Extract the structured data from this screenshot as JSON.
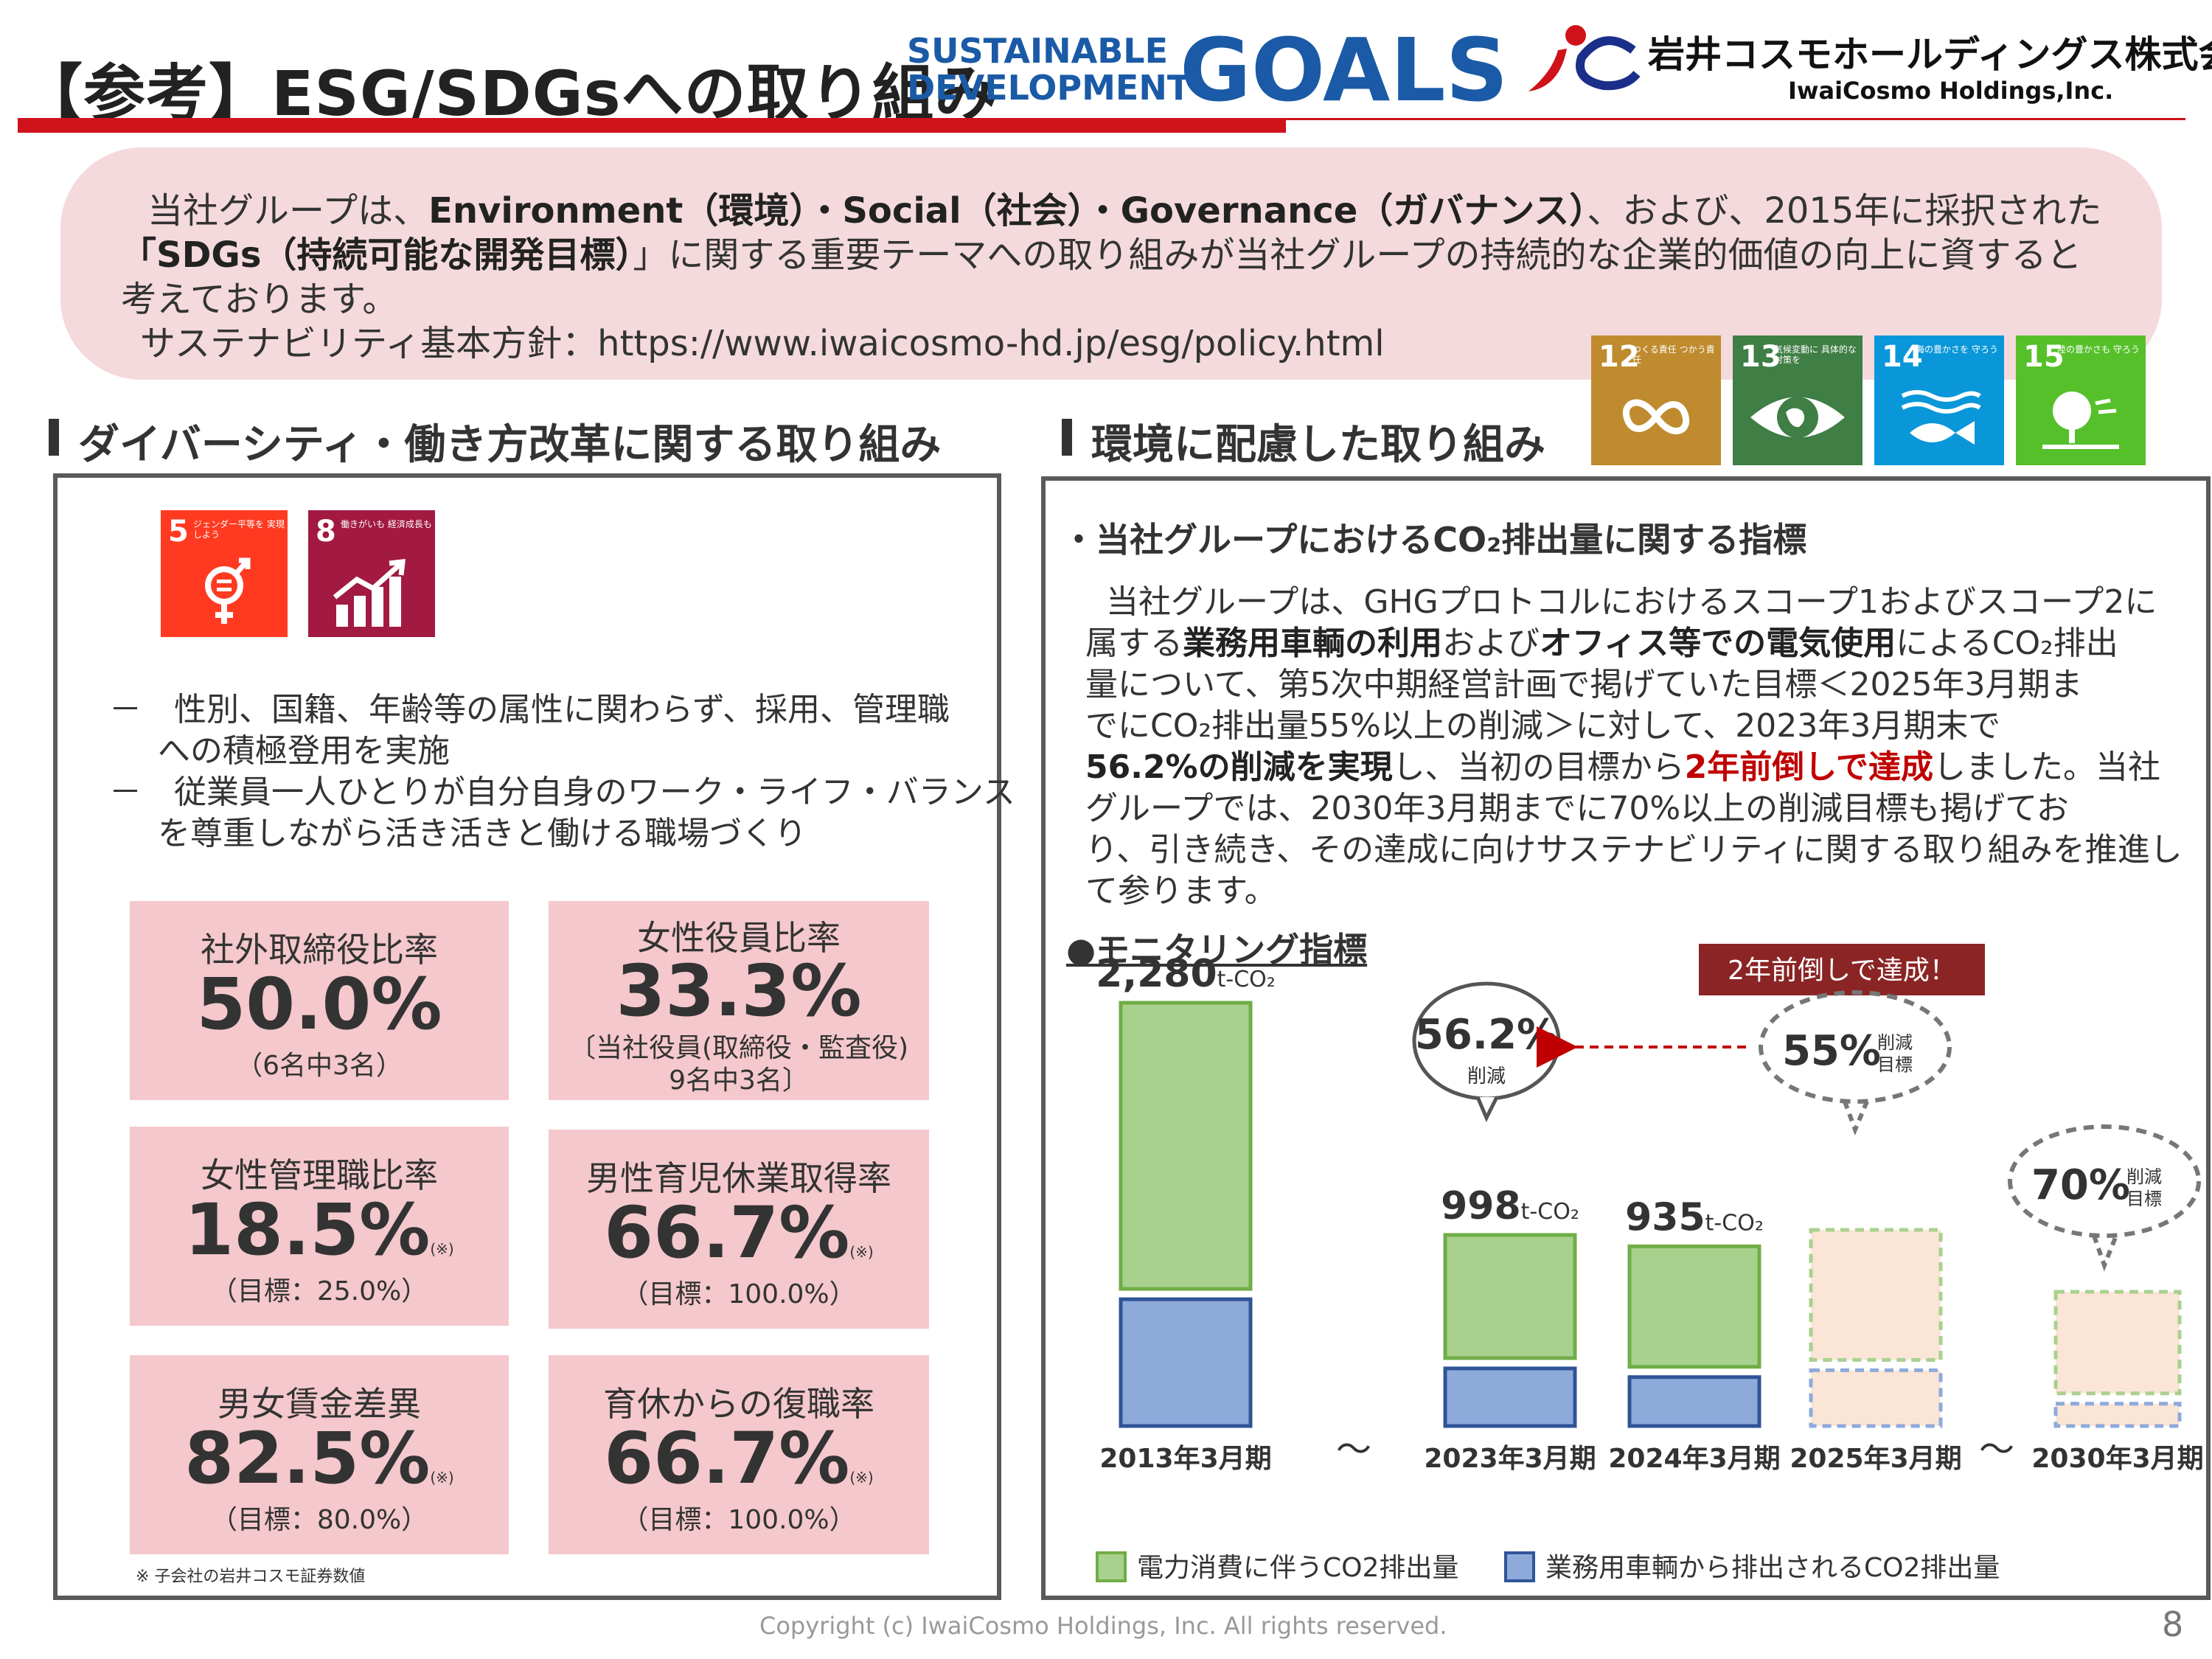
{
  "header": {
    "title": "【参考】ESG/SDGsへの取り組み",
    "sdg_logo_line1": "SUSTAINABLE",
    "sdg_logo_line2": "DEVELOPMENT",
    "sdg_logo_goals": "GOALS",
    "company_name_jp": "岩井コスモホールディングス株式会社",
    "company_name_en": "IwaiCosmo Holdings,Inc.",
    "accent_color": "#d0121b"
  },
  "intro": {
    "line1_a": "当社グループは、",
    "line1_b": "Environment（環境）・Social（社会）・Governance（ガバナンス）",
    "line1_c": "、および、2015年に採択された",
    "line2_a": "「SDGs（持続可能な開発目標）",
    "line2_b": "」に関する重要テーマへの取り組みが当社グループの持続的な企業的価値の向上に資すると",
    "line3": "考えております。",
    "line4": "サステナビリティ基本方針：https://www.iwaicosmo-hd.jp/esg/policy.html"
  },
  "sdg_goals": [
    {
      "num": "12",
      "label": "つくる責任 つかう責任",
      "color": "#bf8b2e",
      "icon": "infinity-icon"
    },
    {
      "num": "13",
      "label": "気候変動に 具体的な対策を",
      "color": "#3f7e44",
      "icon": "eye-globe-icon"
    },
    {
      "num": "14",
      "label": "海の豊かさを 守ろう",
      "color": "#0a97d9",
      "icon": "fish-icon"
    },
    {
      "num": "15",
      "label": "陸の豊かさも 守ろう",
      "color": "#56c02b",
      "icon": "tree-icon"
    },
    {
      "num": "5",
      "label": "ジェンダー平等を 実現しよう",
      "color": "#ff3a21",
      "icon": "gender-icon"
    },
    {
      "num": "8",
      "label": "働きがいも 経済成長も",
      "color": "#a21942",
      "icon": "growth-chart-icon"
    }
  ],
  "left_section": {
    "heading": "ダイバーシティ・働き方改革に関する取り組み",
    "bullet1_line1": "－　性別、国籍、年齢等の属性に関わらず、採用、管理職",
    "bullet1_line2": "への積極登用を実施",
    "bullet2_line1": "－　従業員一人ひとりが自分自身のワーク・ライフ・バランス",
    "bullet2_line2": "を尊重しながら活き活きと働ける職場づくり",
    "kpis": [
      {
        "label": "社外取締役比率",
        "value": "50.0%",
        "mark": "",
        "note1": "（6名中3名）",
        "note2": ""
      },
      {
        "label": "女性役員比率",
        "value": "33.3%",
        "mark": "",
        "note1": "〔当社役員(取締役・監査役)",
        "note2": "9名中3名〕"
      },
      {
        "label": "女性管理職比率",
        "value": "18.5%",
        "mark": "(※)",
        "note1": "（目標：25.0%）",
        "note2": ""
      },
      {
        "label": "男性育児休業取得率",
        "value": "66.7%",
        "mark": "(※)",
        "note1": "（目標：100.0%）",
        "note2": ""
      },
      {
        "label": "男女賃金差異",
        "value": "82.5%",
        "mark": "(※)",
        "note1": "（目標：80.0%）",
        "note2": ""
      },
      {
        "label": "育休からの復職率",
        "value": "66.7%",
        "mark": "(※)",
        "note1": "（目標：100.0%）",
        "note2": ""
      }
    ],
    "footnote": "※ 子会社の岩井コスモ証券数値"
  },
  "right_section": {
    "heading": "環境に配慮した取り組み",
    "subheading": "・当社グループにおけるCO₂排出量に関する指標",
    "p1": "当社グループは、GHGプロトコルにおけるスコープ1およびスコープ2に",
    "p2_a": "属する",
    "p2_b": "業務用車輌の利用",
    "p2_c": "および",
    "p2_d": "オフィス等での電気使用",
    "p2_e": "によるCO₂排出",
    "p3": "量について、第5次中期経営計画で掲げていた目標＜2025年3月期ま",
    "p4": "でにCO₂排出量55%以上の削減＞に対して、2023年3月期末で",
    "p5_a": "56.2%の削減を実現",
    "p5_b": "し、当初の目標から",
    "p5_c": "2年前倒しで達成",
    "p5_d": "しました。当社",
    "p6": "グループでは、2030年3月期までに70%以上の削減目標も掲げてお",
    "p7": "り、引き続き、その達成に向けサステナビリティに関する取り組みを推進し",
    "p8": "て参ります。",
    "monitor_title": "●モニタリング指標"
  },
  "chart_data": {
    "type": "bar",
    "stacked": true,
    "categories": [
      "2013年3月期",
      "2023年3月期",
      "2024年3月期",
      "2025年3月期",
      "2030年3月期"
    ],
    "series": [
      {
        "name": "電力消費に伴うCO2排出量",
        "color": "#a9d18e",
        "border": "#70ad47",
        "values": [
          1580,
          680,
          665,
          null,
          null
        ]
      },
      {
        "name": "業務用車輌から排出されるCO2排出量",
        "color": "#8eaadb",
        "border": "#2f5597",
        "values": [
          700,
          318,
          270,
          null,
          null
        ]
      }
    ],
    "targets": [
      {
        "category": "2025年3月期",
        "total": 1026,
        "upper_share": 0.7,
        "reduction_label": "55%",
        "label": "削減 目標"
      },
      {
        "category": "2030年3月期",
        "total": 684,
        "upper_share": 0.82,
        "reduction_label": "70%",
        "label": "削減 目標"
      }
    ],
    "total_labels": [
      {
        "category": "2013年3月期",
        "value": "2,280",
        "unit": "t-CO₂"
      },
      {
        "category": "2023年3月期",
        "value": "998",
        "unit": "t-CO₂"
      },
      {
        "category": "2024年3月期",
        "value": "935",
        "unit": "t-CO₂"
      }
    ],
    "achieved_bubble": {
      "value": "56.2%",
      "label": "削減"
    },
    "early_badge": "2年前倒しで達成！",
    "axis_break": "〜",
    "ylim": [
      0,
      2280
    ]
  },
  "footer": {
    "copyright": "Copyright (c) IwaiCosmo Holdings, Inc. All rights reserved.",
    "page": "8"
  }
}
